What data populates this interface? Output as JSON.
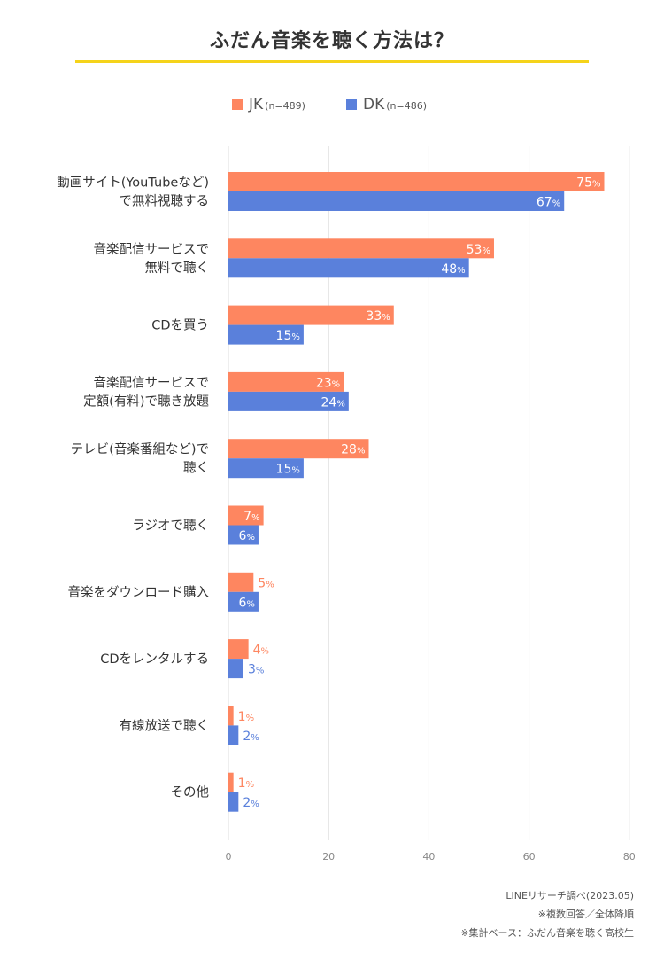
{
  "title": "ふだん音楽を聴く方法は？",
  "legend": {
    "jk": {
      "name": "JK",
      "n": "(n=489)"
    },
    "dk": {
      "name": "DK",
      "n": "(n=486)"
    }
  },
  "colors": {
    "jk": "#fe8660",
    "dk": "#5a80db",
    "title_rule": "#f5d31a",
    "grid": "#dddddd"
  },
  "chart_data": {
    "type": "bar",
    "orientation": "horizontal",
    "categories": [
      [
        "動画サイト(YouTubeなど)",
        "で無料視聴する"
      ],
      [
        "音楽配信サービスで",
        "無料で聴く"
      ],
      [
        "CDを買う"
      ],
      [
        "音楽配信サービスで",
        "定額(有料)で聴き放題"
      ],
      [
        "テレビ(音楽番組など)で",
        "聴く"
      ],
      [
        "ラジオで聴く"
      ],
      [
        "音楽をダウンロード購入"
      ],
      [
        "CDをレンタルする"
      ],
      [
        "有線放送で聴く"
      ],
      [
        "その他"
      ]
    ],
    "series": [
      {
        "name": "JK",
        "values": [
          75,
          53,
          33,
          23,
          28,
          7,
          5,
          4,
          1,
          1
        ]
      },
      {
        "name": "DK",
        "values": [
          67,
          48,
          15,
          24,
          15,
          6,
          6,
          3,
          2,
          2
        ]
      }
    ],
    "unit": "%",
    "xlim": [
      0,
      80
    ],
    "xticks": [
      0,
      20,
      40,
      60,
      80
    ],
    "grid": true,
    "legend_position": "top"
  },
  "footer": {
    "source": "LINEリサーチ調べ(2023.05)",
    "note1": "※複数回答／全体降順",
    "note2": "※集計ベース：ふだん音楽を聴く高校生"
  }
}
